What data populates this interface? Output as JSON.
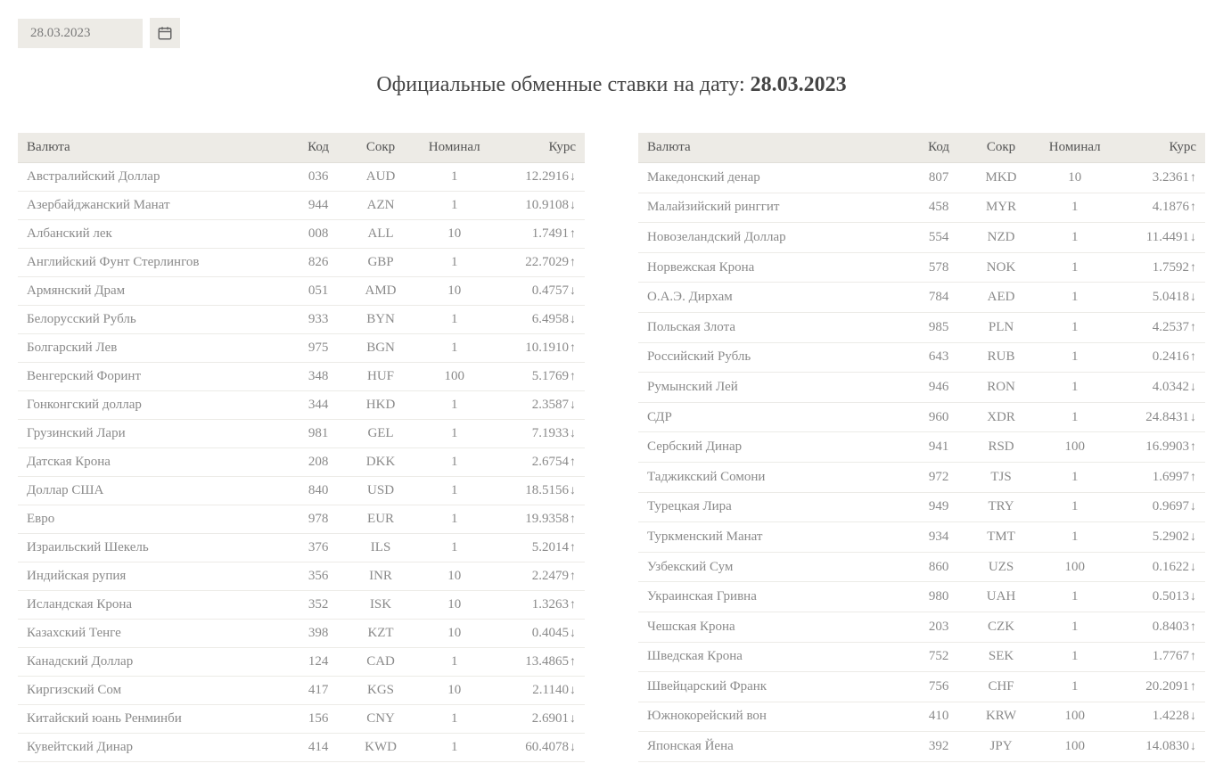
{
  "date_value": "28.03.2023",
  "title_prefix": "Официальные обменные ставки на дату: ",
  "title_date": "28.03.2023",
  "columns": {
    "currency": "Валюта",
    "code": "Код",
    "abbr": "Сокр",
    "nominal": "Номинал",
    "rate": "Курс"
  },
  "colors": {
    "up": "#2e9e5b",
    "down": "#c9534f",
    "header_bg": "#edebe6",
    "text_muted": "#8a8a8a",
    "border": "#ecebe7"
  },
  "arrows": {
    "up": "↑",
    "down": "↓"
  },
  "left_rows": [
    {
      "name": "Австралийский Доллар",
      "code": "036",
      "abbr": "AUD",
      "nominal": "1",
      "rate": "12.2916",
      "dir": "down"
    },
    {
      "name": "Азербайджанский Манат",
      "code": "944",
      "abbr": "AZN",
      "nominal": "1",
      "rate": "10.9108",
      "dir": "down"
    },
    {
      "name": "Албанский лек",
      "code": "008",
      "abbr": "ALL",
      "nominal": "10",
      "rate": "1.7491",
      "dir": "up"
    },
    {
      "name": "Английский Фунт Стерлингов",
      "code": "826",
      "abbr": "GBP",
      "nominal": "1",
      "rate": "22.7029",
      "dir": "up"
    },
    {
      "name": "Армянский Драм",
      "code": "051",
      "abbr": "AMD",
      "nominal": "10",
      "rate": "0.4757",
      "dir": "down"
    },
    {
      "name": "Белорусский Рубль",
      "code": "933",
      "abbr": "BYN",
      "nominal": "1",
      "rate": "6.4958",
      "dir": "down"
    },
    {
      "name": "Болгарский Лев",
      "code": "975",
      "abbr": "BGN",
      "nominal": "1",
      "rate": "10.1910",
      "dir": "up"
    },
    {
      "name": "Венгерский Форинт",
      "code": "348",
      "abbr": "HUF",
      "nominal": "100",
      "rate": "5.1769",
      "dir": "up"
    },
    {
      "name": "Гонконгский доллар",
      "code": "344",
      "abbr": "HKD",
      "nominal": "1",
      "rate": "2.3587",
      "dir": "down"
    },
    {
      "name": "Грузинский Лари",
      "code": "981",
      "abbr": "GEL",
      "nominal": "1",
      "rate": "7.1933",
      "dir": "down"
    },
    {
      "name": "Датская Крона",
      "code": "208",
      "abbr": "DKK",
      "nominal": "1",
      "rate": "2.6754",
      "dir": "up"
    },
    {
      "name": "Доллар США",
      "code": "840",
      "abbr": "USD",
      "nominal": "1",
      "rate": "18.5156",
      "dir": "down"
    },
    {
      "name": "Евро",
      "code": "978",
      "abbr": "EUR",
      "nominal": "1",
      "rate": "19.9358",
      "dir": "up"
    },
    {
      "name": "Израильский Шекель",
      "code": "376",
      "abbr": "ILS",
      "nominal": "1",
      "rate": "5.2014",
      "dir": "up"
    },
    {
      "name": "Индийская рупия",
      "code": "356",
      "abbr": "INR",
      "nominal": "10",
      "rate": "2.2479",
      "dir": "up"
    },
    {
      "name": "Исландская Крона",
      "code": "352",
      "abbr": "ISK",
      "nominal": "10",
      "rate": "1.3263",
      "dir": "up"
    },
    {
      "name": "Казахский Тенге",
      "code": "398",
      "abbr": "KZT",
      "nominal": "10",
      "rate": "0.4045",
      "dir": "down"
    },
    {
      "name": "Канадский Доллар",
      "code": "124",
      "abbr": "CAD",
      "nominal": "1",
      "rate": "13.4865",
      "dir": "up"
    },
    {
      "name": "Киргизский Сом",
      "code": "417",
      "abbr": "KGS",
      "nominal": "10",
      "rate": "2.1140",
      "dir": "down"
    },
    {
      "name": "Китайский юань Ренминби",
      "code": "156",
      "abbr": "CNY",
      "nominal": "1",
      "rate": "2.6901",
      "dir": "down"
    },
    {
      "name": "Кувейтский Динар",
      "code": "414",
      "abbr": "KWD",
      "nominal": "1",
      "rate": "60.4078",
      "dir": "down"
    }
  ],
  "right_rows": [
    {
      "name": "Македонский денар",
      "code": "807",
      "abbr": "MKD",
      "nominal": "10",
      "rate": "3.2361",
      "dir": "up"
    },
    {
      "name": "Малайзийский ринггит",
      "code": "458",
      "abbr": "MYR",
      "nominal": "1",
      "rate": "4.1876",
      "dir": "up"
    },
    {
      "name": "Новозеландский Доллар",
      "code": "554",
      "abbr": "NZD",
      "nominal": "1",
      "rate": "11.4491",
      "dir": "down"
    },
    {
      "name": "Норвежская Крона",
      "code": "578",
      "abbr": "NOK",
      "nominal": "1",
      "rate": "1.7592",
      "dir": "up"
    },
    {
      "name": "О.А.Э. Дирхам",
      "code": "784",
      "abbr": "AED",
      "nominal": "1",
      "rate": "5.0418",
      "dir": "down"
    },
    {
      "name": "Польская Злота",
      "code": "985",
      "abbr": "PLN",
      "nominal": "1",
      "rate": "4.2537",
      "dir": "up"
    },
    {
      "name": "Российский Рубль",
      "code": "643",
      "abbr": "RUB",
      "nominal": "1",
      "rate": "0.2416",
      "dir": "up"
    },
    {
      "name": "Румынский Лей",
      "code": "946",
      "abbr": "RON",
      "nominal": "1",
      "rate": "4.0342",
      "dir": "down"
    },
    {
      "name": "СДР",
      "code": "960",
      "abbr": "XDR",
      "nominal": "1",
      "rate": "24.8431",
      "dir": "down"
    },
    {
      "name": "Сербский Динар",
      "code": "941",
      "abbr": "RSD",
      "nominal": "100",
      "rate": "16.9903",
      "dir": "up"
    },
    {
      "name": "Таджикский Сомони",
      "code": "972",
      "abbr": "TJS",
      "nominal": "1",
      "rate": "1.6997",
      "dir": "up"
    },
    {
      "name": "Турецкая Лира",
      "code": "949",
      "abbr": "TRY",
      "nominal": "1",
      "rate": "0.9697",
      "dir": "down"
    },
    {
      "name": "Туркменский Манат",
      "code": "934",
      "abbr": "TMT",
      "nominal": "1",
      "rate": "5.2902",
      "dir": "down"
    },
    {
      "name": "Узбекский Сум",
      "code": "860",
      "abbr": "UZS",
      "nominal": "100",
      "rate": "0.1622",
      "dir": "down"
    },
    {
      "name": "Украинская Гривна",
      "code": "980",
      "abbr": "UAH",
      "nominal": "1",
      "rate": "0.5013",
      "dir": "down"
    },
    {
      "name": "Чешская Крона",
      "code": "203",
      "abbr": "CZK",
      "nominal": "1",
      "rate": "0.8403",
      "dir": "up"
    },
    {
      "name": "Шведская Крона",
      "code": "752",
      "abbr": "SEK",
      "nominal": "1",
      "rate": "1.7767",
      "dir": "up"
    },
    {
      "name": "Швейцарский Франк",
      "code": "756",
      "abbr": "CHF",
      "nominal": "1",
      "rate": "20.2091",
      "dir": "up"
    },
    {
      "name": "Южнокорейский вон",
      "code": "410",
      "abbr": "KRW",
      "nominal": "100",
      "rate": "1.4228",
      "dir": "down"
    },
    {
      "name": "Японская Йена",
      "code": "392",
      "abbr": "JPY",
      "nominal": "100",
      "rate": "14.0830",
      "dir": "down"
    }
  ]
}
